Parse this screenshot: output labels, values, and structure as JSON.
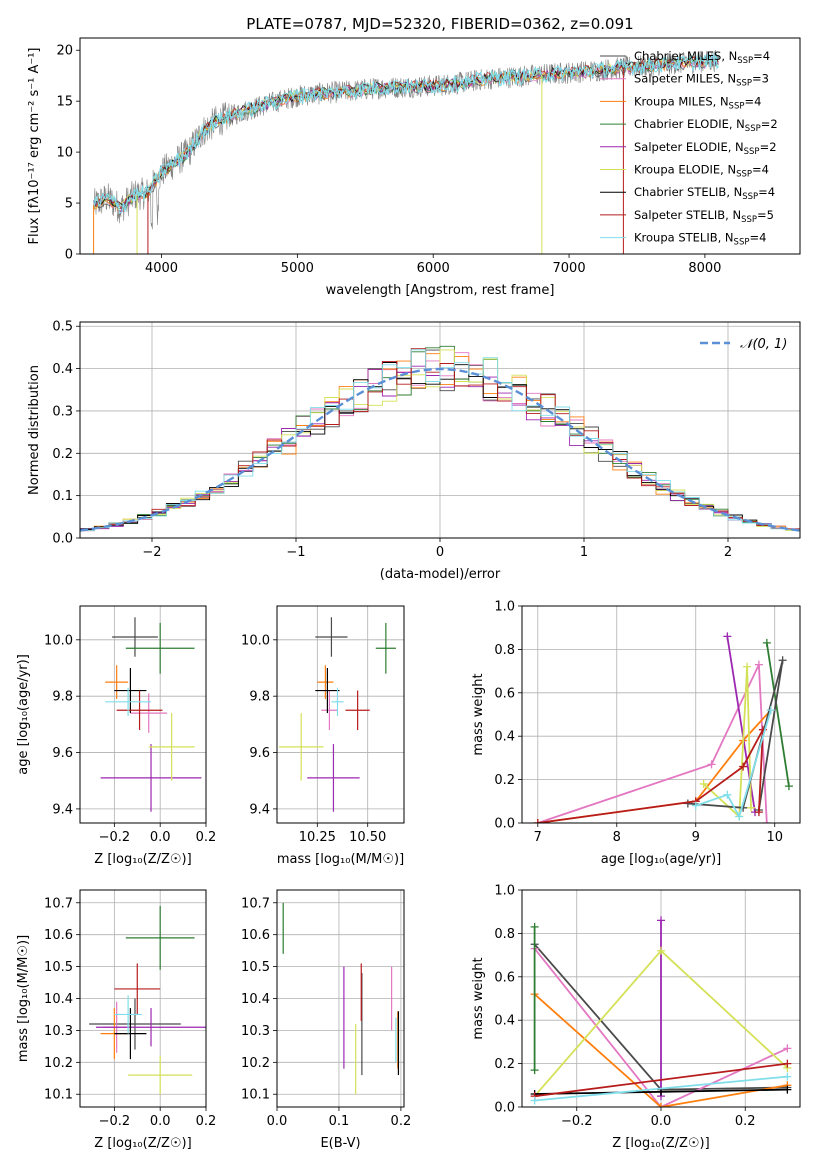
{
  "chart_data": [
    {
      "id": "spectrum",
      "type": "line",
      "title": "PLATE=0787, MJD=52320, FIBERID=0362, z=0.091",
      "xlabel": "wavelength [Angstrom, rest frame]",
      "ylabel": "Flux [fλ10⁻¹⁷ erg cm⁻² s⁻¹ A⁻¹]",
      "xlim": [
        3400,
        8700
      ],
      "ylim": [
        0,
        21.2
      ],
      "xticks": [
        4000,
        5000,
        6000,
        7000,
        8000
      ],
      "yticks": [
        0,
        5,
        10,
        15,
        20
      ],
      "grid": false,
      "legend_placement": "top-right",
      "spectrum_envelope": {
        "x": [
          3500,
          3600,
          3700,
          3800,
          3900,
          4000,
          4100,
          4200,
          4300,
          4400,
          4500,
          4600,
          4800,
          5000,
          5200,
          5400,
          5600,
          5800,
          6000,
          6200,
          6400,
          6600,
          6800,
          7000,
          7200,
          7400,
          7600,
          7800,
          8000,
          8100
        ],
        "y": [
          4.8,
          5.5,
          4.5,
          5.8,
          6.0,
          8.0,
          9.0,
          10.0,
          12.0,
          13.0,
          13.5,
          14.0,
          14.8,
          15.5,
          15.8,
          16.0,
          16.3,
          16.4,
          16.5,
          16.8,
          17.2,
          17.4,
          17.6,
          17.8,
          18.0,
          18.3,
          18.5,
          18.7,
          18.9,
          19.0
        ]
      },
      "spike_lines": [
        3500,
        3820,
        3900,
        6800,
        7400
      ],
      "series": [
        {
          "name": "Chabrier MILES, N",
          "sub": "SSP",
          "tail": "=4",
          "color": "#4a4a4a"
        },
        {
          "name": "Salpeter MILES, N",
          "sub": "SSP",
          "tail": "=3",
          "color": "#e377c2"
        },
        {
          "name": "Kroupa MILES, N",
          "sub": "SSP",
          "tail": "=4",
          "color": "#ff7f0e"
        },
        {
          "name": "Chabrier ELODIE, N",
          "sub": "SSP",
          "tail": "=2",
          "color": "#2e7d32"
        },
        {
          "name": "Salpeter ELODIE, N",
          "sub": "SSP",
          "tail": "=2",
          "color": "#9c27b0"
        },
        {
          "name": "Kroupa ELODIE, N",
          "sub": "SSP",
          "tail": "=4",
          "color": "#d4e157"
        },
        {
          "name": "Chabrier STELIB, N",
          "sub": "SSP",
          "tail": "=4",
          "color": "#000000"
        },
        {
          "name": "Salpeter STELIB, N",
          "sub": "SSP",
          "tail": "=5",
          "color": "#b71c1c"
        },
        {
          "name": "Kroupa STELIB, N",
          "sub": "SSP",
          "tail": "=4",
          "color": "#80deea"
        }
      ]
    },
    {
      "id": "residuals",
      "type": "line",
      "xlabel": "(data-model)/error",
      "ylabel": "Normed distribution",
      "xlim": [
        -2.5,
        2.5
      ],
      "ylim": [
        0,
        0.51
      ],
      "xticks": [
        -2,
        -1,
        0,
        1,
        2
      ],
      "yticks": [
        0.0,
        0.1,
        0.2,
        0.3,
        0.4,
        0.5
      ],
      "grid": true,
      "legend_placement": "top-right",
      "legend": [
        "𝒩(0, 1)"
      ],
      "gaussian_color": "#5b8fd6",
      "bin_width": 0.1
    },
    {
      "id": "z-age",
      "type": "scatter",
      "xlabel": "Z [log₁₀(Z/Z☉)]",
      "ylabel": "age  [log₁₀(age/yr)]",
      "xlim": [
        -0.35,
        0.2
      ],
      "ylim": [
        9.35,
        10.12
      ],
      "xticks": [
        -0.2,
        0.0,
        0.2
      ],
      "yticks": [
        9.4,
        9.6,
        9.8,
        10.0
      ],
      "grid": true,
      "points": [
        {
          "x": -0.11,
          "y": 10.01,
          "xerr": 0.1,
          "yerr": 0.07,
          "color": "#4a4a4a"
        },
        {
          "x": -0.05,
          "y": 9.74,
          "xerr": 0.08,
          "yerr": 0.07,
          "color": "#e377c2"
        },
        {
          "x": -0.19,
          "y": 9.85,
          "xerr": 0.05,
          "yerr": 0.06,
          "color": "#ff7f0e"
        },
        {
          "x": 0.0,
          "y": 9.97,
          "xerr": 0.15,
          "yerr": 0.09,
          "color": "#2e7d32"
        },
        {
          "x": -0.04,
          "y": 9.51,
          "xerr": 0.22,
          "yerr": 0.12,
          "color": "#9c27b0"
        },
        {
          "x": 0.05,
          "y": 9.62,
          "xerr": 0.1,
          "yerr": 0.12,
          "color": "#d4e157"
        },
        {
          "x": -0.13,
          "y": 9.82,
          "xerr": 0.07,
          "yerr": 0.08,
          "color": "#000000"
        },
        {
          "x": -0.09,
          "y": 9.75,
          "xerr": 0.1,
          "yerr": 0.07,
          "color": "#b71c1c"
        },
        {
          "x": -0.14,
          "y": 9.78,
          "xerr": 0.1,
          "yerr": 0.05,
          "color": "#80deea"
        }
      ]
    },
    {
      "id": "mass-age",
      "type": "scatter",
      "xlabel": "mass [log₁₀(M/M☉)]",
      "ylabel": "",
      "xlim": [
        10.05,
        10.68
      ],
      "ylim": [
        9.35,
        10.12
      ],
      "xticks": [
        10.25,
        10.5
      ],
      "yticks": [
        9.4,
        9.6,
        9.8,
        10.0
      ],
      "grid": true,
      "points": [
        {
          "x": 10.32,
          "y": 10.01,
          "xerr": 0.08,
          "yerr": 0.07,
          "color": "#4a4a4a"
        },
        {
          "x": 10.31,
          "y": 9.75,
          "xerr": 0.04,
          "yerr": 0.07,
          "color": "#e377c2"
        },
        {
          "x": 10.29,
          "y": 9.85,
          "xerr": 0.04,
          "yerr": 0.06,
          "color": "#ff7f0e"
        },
        {
          "x": 10.59,
          "y": 9.97,
          "xerr": 0.05,
          "yerr": 0.09,
          "color": "#2e7d32"
        },
        {
          "x": 10.33,
          "y": 9.51,
          "xerr": 0.13,
          "yerr": 0.12,
          "color": "#9c27b0"
        },
        {
          "x": 10.17,
          "y": 9.62,
          "xerr": 0.11,
          "yerr": 0.12,
          "color": "#d4e157"
        },
        {
          "x": 10.3,
          "y": 9.82,
          "xerr": 0.06,
          "yerr": 0.08,
          "color": "#000000"
        },
        {
          "x": 10.45,
          "y": 9.75,
          "xerr": 0.06,
          "yerr": 0.07,
          "color": "#b71c1c"
        },
        {
          "x": 10.35,
          "y": 9.78,
          "xerr": 0.03,
          "yerr": 0.05,
          "color": "#80deea"
        }
      ]
    },
    {
      "id": "age-weight",
      "type": "line",
      "xlabel": "age  [log₁₀(age/yr)]",
      "ylabel": "mass weight",
      "xlim": [
        6.8,
        10.32
      ],
      "ylim": [
        0,
        1.0
      ],
      "xticks": [
        7,
        8,
        9,
        10
      ],
      "yticks": [
        0.0,
        0.2,
        0.4,
        0.6,
        0.8,
        1.0
      ],
      "grid": true,
      "series": [
        {
          "color": "#e377c2",
          "points": [
            [
              7.0,
              0.0
            ],
            [
              9.2,
              0.27
            ],
            [
              9.8,
              0.73
            ],
            [
              9.9,
              0.0
            ]
          ]
        },
        {
          "color": "#ff7f0e",
          "points": [
            [
              7.0,
              0.0
            ],
            [
              9.0,
              0.1
            ],
            [
              9.6,
              0.38
            ],
            [
              9.95,
              0.52
            ]
          ]
        },
        {
          "color": "#2e7d32",
          "points": [
            [
              9.9,
              0.83
            ],
            [
              10.18,
              0.17
            ]
          ]
        },
        {
          "color": "#9c27b0",
          "points": [
            [
              9.4,
              0.86
            ],
            [
              9.75,
              0.05
            ]
          ]
        },
        {
          "color": "#d4e157",
          "points": [
            [
              9.1,
              0.18
            ],
            [
              9.55,
              0.03
            ],
            [
              9.65,
              0.72
            ],
            [
              9.7,
              0.07
            ]
          ]
        },
        {
          "color": "#4a4a4a",
          "points": [
            [
              8.9,
              0.09
            ],
            [
              9.6,
              0.07
            ],
            [
              10.1,
              0.75
            ],
            [
              9.8,
              0.06
            ]
          ]
        },
        {
          "color": "#b71c1c",
          "points": [
            [
              7.0,
              0.0
            ],
            [
              9.0,
              0.1
            ],
            [
              9.6,
              0.26
            ],
            [
              9.85,
              0.43
            ],
            [
              9.8,
              0.05
            ]
          ]
        },
        {
          "color": "#80deea",
          "points": [
            [
              9.0,
              0.08
            ],
            [
              9.4,
              0.13
            ],
            [
              9.55,
              0.03
            ],
            [
              9.95,
              0.52
            ]
          ]
        }
      ]
    },
    {
      "id": "z-mass",
      "type": "scatter",
      "xlabel": "Z [log₁₀(Z/Z☉)]",
      "ylabel": "mass [log₁₀(M/M☉)]",
      "xlim": [
        -0.35,
        0.2
      ],
      "ylim": [
        10.06,
        10.74
      ],
      "xticks": [
        -0.2,
        0.0,
        0.2
      ],
      "yticks": [
        10.1,
        10.2,
        10.3,
        10.4,
        10.5,
        10.6,
        10.7
      ],
      "grid": true,
      "points": [
        {
          "x": -0.11,
          "y": 10.32,
          "xerr": 0.2,
          "yerr": 0.08,
          "color": "#4a4a4a"
        },
        {
          "x": -0.19,
          "y": 10.31,
          "xerr": 0.06,
          "yerr": 0.08,
          "color": "#e377c2"
        },
        {
          "x": -0.2,
          "y": 10.29,
          "xerr": 0.06,
          "yerr": 0.08,
          "color": "#ff7f0e"
        },
        {
          "x": 0.0,
          "y": 10.59,
          "xerr": 0.15,
          "yerr": 0.1,
          "color": "#2e7d32"
        },
        {
          "x": -0.04,
          "y": 10.31,
          "xerr": 0.24,
          "yerr": 0.06,
          "color": "#9c27b0"
        },
        {
          "x": 0.0,
          "y": 10.16,
          "xerr": 0.14,
          "yerr": 0.06,
          "color": "#d4e157"
        },
        {
          "x": -0.13,
          "y": 10.29,
          "xerr": 0.07,
          "yerr": 0.08,
          "color": "#000000"
        },
        {
          "x": -0.1,
          "y": 10.43,
          "xerr": 0.1,
          "yerr": 0.08,
          "color": "#b71c1c"
        },
        {
          "x": -0.14,
          "y": 10.35,
          "xerr": 0.06,
          "yerr": 0.06,
          "color": "#80deea"
        }
      ]
    },
    {
      "id": "ebv-mass",
      "type": "scatter",
      "xlabel": "E(B-V)",
      "ylabel": "",
      "xlim": [
        0,
        0.205
      ],
      "ylim": [
        10.06,
        10.74
      ],
      "xticks": [
        0.0,
        0.1,
        0.2
      ],
      "yticks": [
        10.1,
        10.2,
        10.3,
        10.4,
        10.5,
        10.6,
        10.7
      ],
      "grid": true,
      "points": [
        {
          "x": 0.137,
          "y": 10.32,
          "yerr": 0.16,
          "color": "#4a4a4a"
        },
        {
          "x": 0.185,
          "y": 10.4,
          "yerr": 0.1,
          "color": "#e377c2"
        },
        {
          "x": 0.195,
          "y": 10.27,
          "yerr": 0.09,
          "color": "#ff7f0e"
        },
        {
          "x": 0.01,
          "y": 10.62,
          "yerr": 0.08,
          "color": "#2e7d32"
        },
        {
          "x": 0.108,
          "y": 10.34,
          "yerr": 0.16,
          "color": "#9c27b0"
        },
        {
          "x": 0.127,
          "y": 10.21,
          "yerr": 0.11,
          "color": "#d4e157"
        },
        {
          "x": 0.196,
          "y": 10.26,
          "yerr": 0.1,
          "color": "#000000"
        },
        {
          "x": 0.136,
          "y": 10.42,
          "yerr": 0.09,
          "color": "#b71c1c"
        },
        {
          "x": 0.192,
          "y": 10.27,
          "yerr": 0.07,
          "color": "#80deea"
        }
      ]
    },
    {
      "id": "z-weight",
      "type": "line",
      "xlabel": "Z [log₁₀(Z/Z☉)]",
      "ylabel": "mass weight",
      "xlim": [
        -0.33,
        0.33
      ],
      "ylim": [
        0,
        1.0
      ],
      "xticks": [
        -0.2,
        0.0,
        0.2
      ],
      "yticks": [
        0.0,
        0.2,
        0.4,
        0.6,
        0.8,
        1.0
      ],
      "grid": true,
      "series": [
        {
          "color": "#4a4a4a",
          "points": [
            [
              -0.3,
              0.75
            ],
            [
              0.0,
              0.08
            ],
            [
              0.3,
              0.09
            ]
          ]
        },
        {
          "color": "#e377c2",
          "points": [
            [
              -0.3,
              0.73
            ],
            [
              0.0,
              0.0
            ],
            [
              0.3,
              0.27
            ]
          ]
        },
        {
          "color": "#ff7f0e",
          "points": [
            [
              -0.3,
              0.52
            ],
            [
              0.0,
              0.0
            ],
            [
              0.3,
              0.1
            ]
          ]
        },
        {
          "color": "#2e7d32",
          "points": [
            [
              -0.3,
              0.17
            ],
            [
              -0.3,
              0.83
            ]
          ]
        },
        {
          "color": "#9c27b0",
          "points": [
            [
              0.0,
              0.05
            ],
            [
              0.0,
              0.86
            ]
          ]
        },
        {
          "color": "#d4e157",
          "points": [
            [
              -0.3,
              0.05
            ],
            [
              0.0,
              0.72
            ],
            [
              0.3,
              0.18
            ]
          ]
        },
        {
          "color": "#000000",
          "points": [
            [
              -0.3,
              0.06
            ],
            [
              0.0,
              0.07
            ],
            [
              0.3,
              0.08
            ]
          ]
        },
        {
          "color": "#b71c1c",
          "points": [
            [
              -0.3,
              0.05
            ],
            [
              0.3,
              0.2
            ]
          ]
        },
        {
          "color": "#80deea",
          "points": [
            [
              -0.3,
              0.03
            ],
            [
              0.3,
              0.14
            ]
          ]
        }
      ]
    }
  ]
}
